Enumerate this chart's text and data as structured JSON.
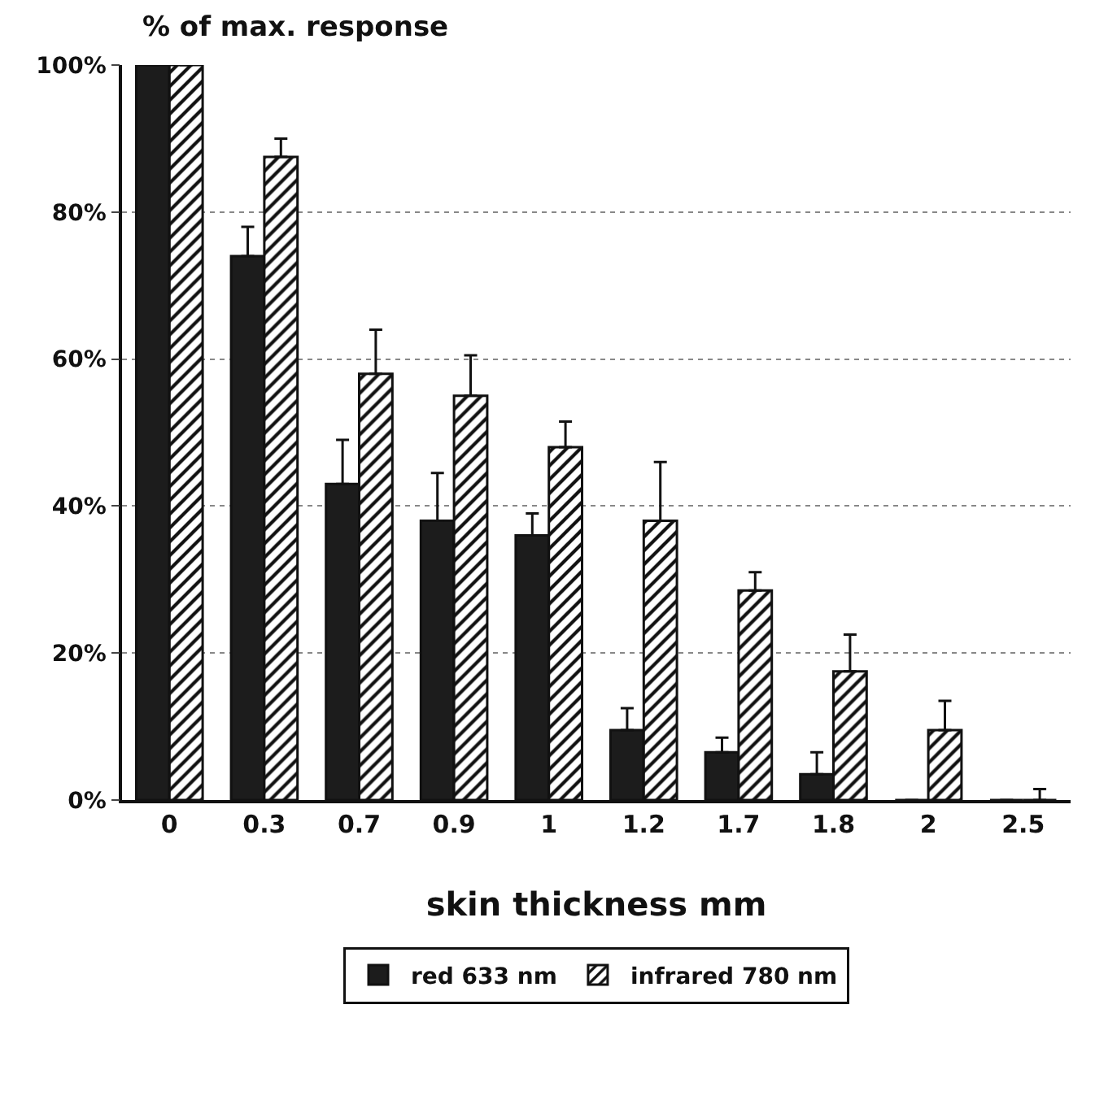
{
  "chart_data": {
    "type": "bar",
    "title": "% of max. response",
    "xlabel": "skin thickness mm",
    "categories": [
      "0",
      "0.3",
      "0.7",
      "0.9",
      "1",
      "1.2",
      "1.7",
      "1.8",
      "2",
      "2.5"
    ],
    "series": [
      {
        "name": "red 633 nm",
        "color": "#1c1c1c",
        "values": [
          100,
          74,
          43,
          38,
          36,
          9.5,
          6.5,
          3.5,
          0,
          0
        ],
        "errors": [
          null,
          [
            74,
            78
          ],
          [
            43,
            49
          ],
          [
            38,
            44.5
          ],
          [
            36,
            39
          ],
          [
            9.5,
            12.5
          ],
          [
            6.5,
            8.5
          ],
          [
            3.5,
            6.5
          ],
          null,
          null
        ]
      },
      {
        "name": "infrared 780 nm",
        "color": "#111111",
        "values": [
          100,
          87.5,
          58,
          55,
          48,
          38,
          28.5,
          17.5,
          9.5,
          0
        ],
        "errors": [
          null,
          [
            87.5,
            90
          ],
          [
            58,
            64
          ],
          [
            55,
            60.5
          ],
          [
            48,
            51.5
          ],
          [
            38,
            46
          ],
          [
            28.5,
            31
          ],
          [
            17.5,
            22.5
          ],
          [
            9.5,
            13.5
          ],
          [
            0,
            1.5
          ]
        ]
      }
    ],
    "ylim": [
      0,
      100
    ],
    "yticks": [
      {
        "value": 0,
        "label": "0%"
      },
      {
        "value": 20,
        "label": "20%"
      },
      {
        "value": 40,
        "label": "40%"
      },
      {
        "value": 60,
        "label": "60%"
      },
      {
        "value": 80,
        "label": "80%"
      },
      {
        "value": 100,
        "label": "100%"
      }
    ],
    "grid": "y",
    "legend": "bottom"
  }
}
